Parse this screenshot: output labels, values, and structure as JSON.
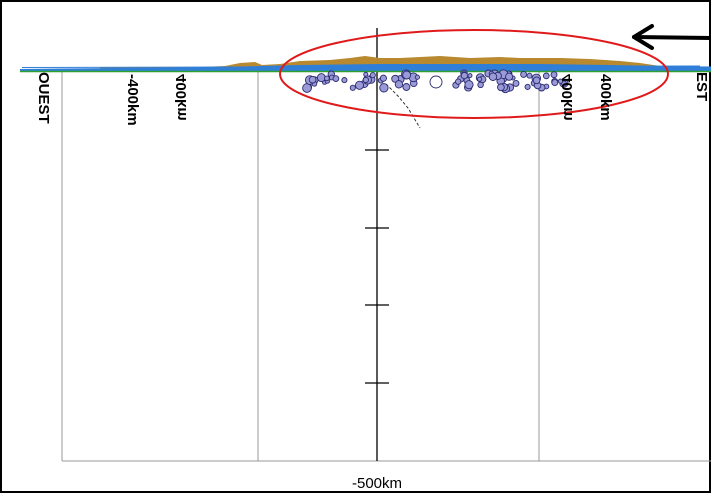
{
  "labels": {
    "west": "OUEST",
    "east": "EST",
    "left_inner": "400km",
    "left_outer": "-400km",
    "right_inner": "400km",
    "right_outer": "400km",
    "bottom": "-500km"
  },
  "colors": {
    "surface_blue": "#2f7fd8",
    "surface_green": "#2fa02f",
    "topography": "#b8892e",
    "hypocenter_fill": "#9a9ad6",
    "hypocenter_stroke": "#2a2a70",
    "highlight_ellipse": "#e01a1a",
    "arrow": "#000000"
  },
  "icons": {
    "pointer": "left-arrow-icon"
  }
}
